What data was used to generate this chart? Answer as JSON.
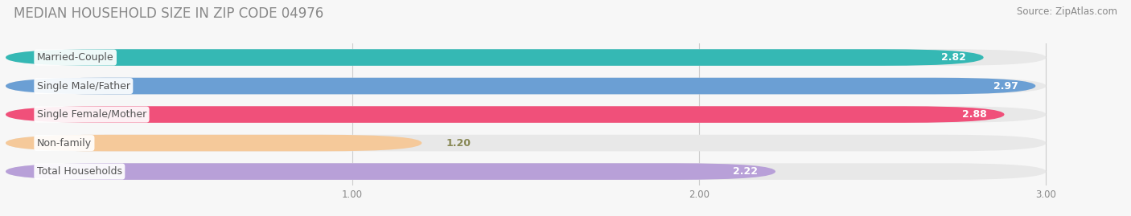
{
  "title": "MEDIAN HOUSEHOLD SIZE IN ZIP CODE 04976",
  "source": "Source: ZipAtlas.com",
  "categories": [
    "Married-Couple",
    "Single Male/Father",
    "Single Female/Mother",
    "Non-family",
    "Total Households"
  ],
  "values": [
    2.82,
    2.97,
    2.88,
    1.2,
    2.22
  ],
  "bar_colors": [
    "#35b8b4",
    "#6b9fd4",
    "#f0507a",
    "#f5c99a",
    "#b8a0d8"
  ],
  "value_colors": [
    "white",
    "white",
    "white",
    "#888855",
    "white"
  ],
  "xlim_start": 0.0,
  "xlim_end": 3.18,
  "data_max": 3.0,
  "xticks": [
    1.0,
    2.0,
    3.0
  ],
  "background_color": "#f7f7f7",
  "bar_bg_color": "#e8e8e8",
  "label_bg_color": "#ffffff",
  "label_text_color": "#555555",
  "title_color": "#888888",
  "source_color": "#888888",
  "title_fontsize": 12,
  "source_fontsize": 8.5,
  "label_fontsize": 9,
  "value_fontsize": 9,
  "bar_height": 0.58,
  "bar_gap": 0.42
}
